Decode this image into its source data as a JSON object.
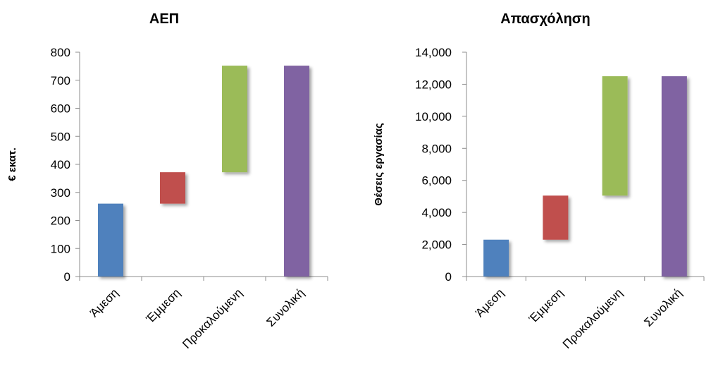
{
  "chart_data": [
    {
      "type": "bar",
      "subtype": "waterfall",
      "title": "ΑΕΠ",
      "xlabel": "",
      "ylabel": "€ εκατ.",
      "categories": [
        "Άμεση",
        "Έμμεση",
        "Προκαλούμενη",
        "Συνολική"
      ],
      "ranges": [
        [
          0,
          260
        ],
        [
          260,
          372
        ],
        [
          372,
          752
        ],
        [
          0,
          752
        ]
      ],
      "values": [
        260,
        112,
        380,
        752
      ],
      "colors": [
        "#4f81bd",
        "#c0504d",
        "#9bbb59",
        "#8064a2"
      ],
      "ylim": [
        0,
        800
      ],
      "yticks": [
        0,
        100,
        200,
        300,
        400,
        500,
        600,
        700,
        800
      ],
      "ytick_labels": [
        "0",
        "100",
        "200",
        "300",
        "400",
        "500",
        "600",
        "700",
        "800"
      ],
      "grid": false,
      "legend": "none"
    },
    {
      "type": "bar",
      "subtype": "waterfall",
      "title": "Απασχόληση",
      "xlabel": "",
      "ylabel": "Θέσεις εργασίας",
      "categories": [
        "Άμεση",
        "Έμμεση",
        "Προκαλούμενη",
        "Συνολική"
      ],
      "ranges": [
        [
          0,
          2300
        ],
        [
          2300,
          5050
        ],
        [
          5050,
          12500
        ],
        [
          0,
          12500
        ]
      ],
      "values": [
        2300,
        2750,
        7450,
        12500
      ],
      "colors": [
        "#4f81bd",
        "#c0504d",
        "#9bbb59",
        "#8064a2"
      ],
      "ylim": [
        0,
        14000
      ],
      "yticks": [
        0,
        2000,
        4000,
        6000,
        8000,
        10000,
        12000,
        14000
      ],
      "ytick_labels": [
        "0",
        "2,000",
        "4,000",
        "6,000",
        "8,000",
        "10,000",
        "12,000",
        "14,000"
      ],
      "grid": false,
      "legend": "none"
    }
  ]
}
